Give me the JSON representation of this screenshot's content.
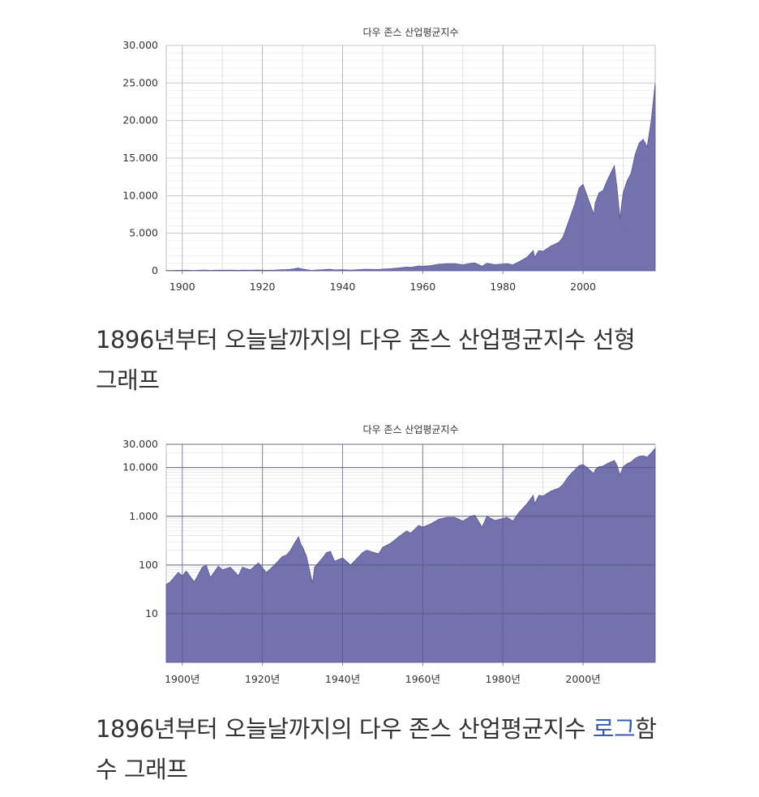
{
  "captions": {
    "linear": "1896년부터 오늘날까지의 다우 존스 산업평균지수 선형 그래프",
    "log_prefix": "1896년부터 오늘날까지의 다우 존스 산업평균지수 ",
    "log_link": "로그",
    "log_suffix": "함수 그래프"
  },
  "colors": {
    "area": "#6b6aa8",
    "grid": "#c8c8c8",
    "accent_link": "#3a5bb5"
  },
  "chart_data": [
    {
      "type": "area",
      "scale": "linear",
      "title": "다우 존스 산업평균지수",
      "ylim": [
        0,
        30000
      ],
      "xlim": [
        1896,
        2018
      ],
      "yticks": [
        0,
        5000,
        10000,
        15000,
        20000,
        25000,
        30000
      ],
      "ytick_labels": [
        "0",
        "5.000",
        "10.000",
        "15.000",
        "20.000",
        "25.000",
        "30.000"
      ],
      "xticks": [
        1900,
        1920,
        1940,
        1960,
        1980,
        2000
      ],
      "xtick_labels": [
        "1900",
        "1920",
        "1940",
        "1960",
        "1980",
        "2000"
      ],
      "grid": true,
      "series": [
        {
          "values_ref": "dow_series"
        }
      ]
    },
    {
      "type": "area",
      "scale": "log",
      "title": "다우 존스 산업평균지수",
      "ylim": [
        1,
        30000
      ],
      "xlim": [
        1896,
        2018
      ],
      "yticks": [
        10,
        100,
        1000,
        10000,
        30000
      ],
      "ytick_labels": [
        "10",
        "100",
        "1.000",
        "10.000",
        "30.000"
      ],
      "xticks": [
        1900,
        1920,
        1940,
        1960,
        1980,
        2000
      ],
      "xtick_labels": [
        "1900년",
        "1920년",
        "1940년",
        "1960년",
        "1980년",
        "2000년"
      ],
      "grid": true,
      "series": [
        {
          "values_ref": "dow_series"
        }
      ]
    }
  ],
  "dow_series": {
    "x": [
      1896,
      1897,
      1899,
      1900,
      1901,
      1903,
      1905,
      1906,
      1907,
      1909,
      1910,
      1912,
      1914,
      1915,
      1917,
      1919,
      1921,
      1923,
      1925,
      1926,
      1927,
      1928,
      1929,
      1929.7,
      1930,
      1931,
      1932.5,
      1933,
      1935,
      1936,
      1937,
      1938,
      1940,
      1942,
      1945,
      1946,
      1949,
      1950,
      1952,
      1954,
      1956,
      1957,
      1959,
      1960,
      1962,
      1964,
      1966,
      1968,
      1970,
      1972,
      1973,
      1974.8,
      1976,
      1978,
      1980,
      1981,
      1982.5,
      1984,
      1986,
      1987.6,
      1987.9,
      1989,
      1990,
      1992,
      1994,
      1995,
      1996,
      1997,
      1998,
      1999,
      2000,
      2001,
      2002.7,
      2003,
      2004,
      2005,
      2006,
      2007.8,
      2008.5,
      2009.2,
      2010,
      2011,
      2012,
      2013,
      2014,
      2015,
      2016,
      2017,
      2018
    ],
    "y": [
      40,
      45,
      70,
      60,
      75,
      45,
      90,
      100,
      55,
      95,
      80,
      90,
      60,
      90,
      80,
      110,
      70,
      100,
      150,
      160,
      200,
      280,
      380,
      250,
      240,
      150,
      42,
      90,
      140,
      180,
      190,
      120,
      140,
      100,
      180,
      200,
      170,
      230,
      280,
      380,
      500,
      450,
      650,
      600,
      700,
      870,
      950,
      950,
      800,
      1000,
      1050,
      600,
      1000,
      820,
      900,
      950,
      800,
      1200,
      1800,
      2700,
      1800,
      2700,
      2600,
      3300,
      3800,
      4500,
      6000,
      7500,
      9000,
      11000,
      11500,
      10000,
      7500,
      9000,
      10400,
      10700,
      12000,
      14000,
      11000,
      7000,
      10400,
      12000,
      13000,
      15500,
      17000,
      17500,
      16500,
      20000,
      25000
    ]
  }
}
